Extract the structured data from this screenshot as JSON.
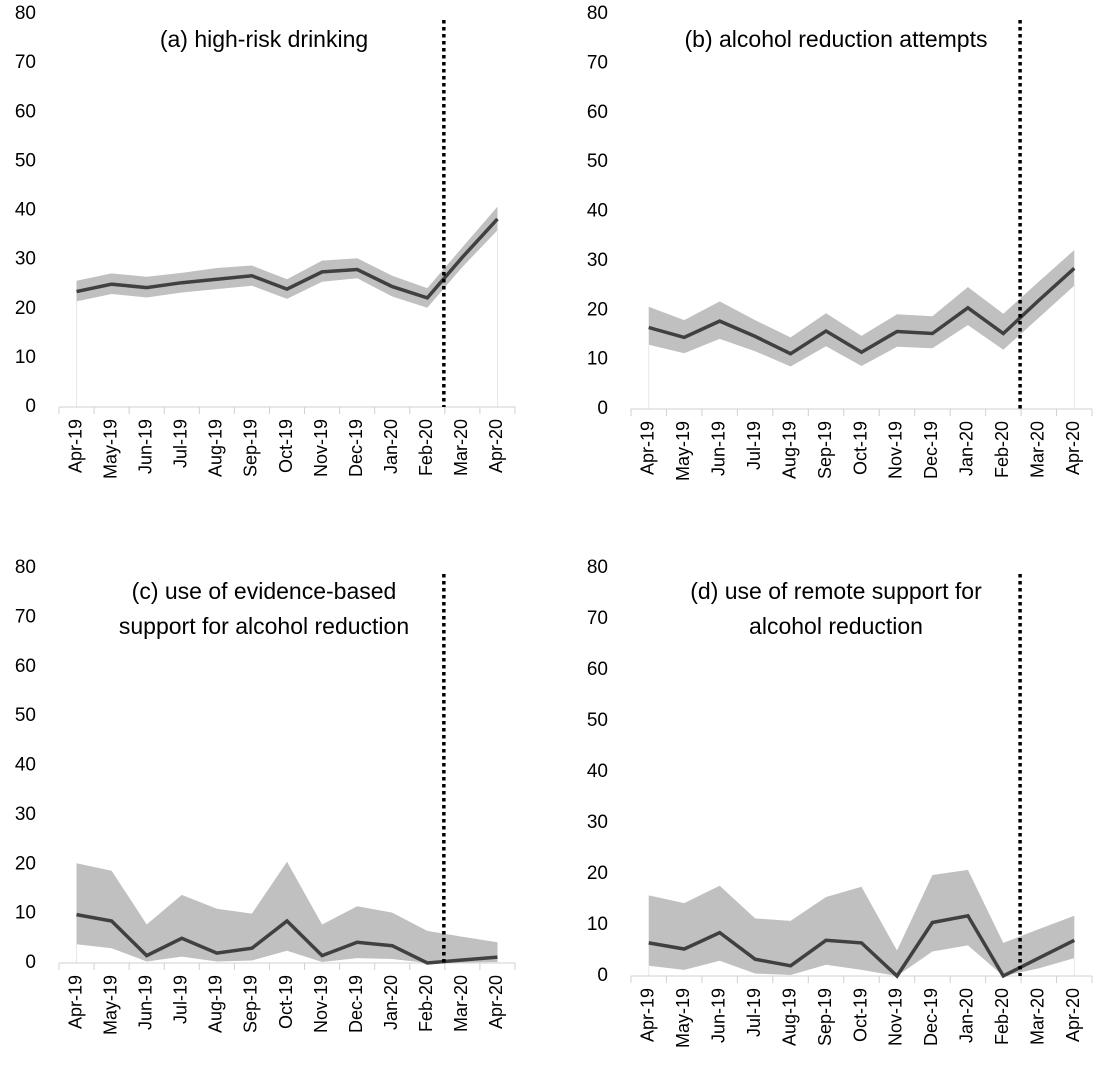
{
  "chart_data": [
    {
      "type": "line",
      "title_lines": [
        "(a) high-risk drinking"
      ],
      "categories": [
        "Apr-19",
        "May-19",
        "Jun-19",
        "Jul-19",
        "Aug-19",
        "Sep-19",
        "Oct-19",
        "Nov-19",
        "Dec-19",
        "Jan-20",
        "Feb-20",
        "Mar-20",
        "Apr-20"
      ],
      "yticks": [
        "0",
        "10",
        "20",
        "30",
        "40",
        "50",
        "60",
        "70",
        "80"
      ],
      "ylim": [
        0,
        80
      ],
      "series": [
        {
          "values": [
            23.5,
            25.0,
            24.3,
            25.3,
            26.0,
            26.7,
            24.0,
            27.5,
            28.0,
            24.5,
            22.2,
            30.5,
            38.3
          ],
          "lower": [
            21.5,
            23.0,
            22.3,
            23.3,
            24.0,
            24.7,
            22.0,
            25.5,
            26.2,
            22.5,
            20.2,
            28.5,
            36.0
          ],
          "upper": [
            25.7,
            27.2,
            26.5,
            27.3,
            28.3,
            28.8,
            26.0,
            29.8,
            30.3,
            26.7,
            24.2,
            32.5,
            40.8
          ]
        }
      ],
      "marker": {
        "style": "vertical-dotted",
        "between": [
          "Feb-20",
          "Mar-20"
        ]
      },
      "colors": {
        "line": "#404040",
        "band": "#c0c0c0",
        "marker": "#000000"
      }
    },
    {
      "type": "line",
      "title_lines": [
        "(b) alcohol reduction attempts"
      ],
      "categories": [
        "Apr-19",
        "May-19",
        "Jun-19",
        "Jul-19",
        "Aug-19",
        "Sep-19",
        "Oct-19",
        "Nov-19",
        "Dec-19",
        "Jan-20",
        "Feb-20",
        "Mar-20",
        "Apr-20"
      ],
      "yticks": [
        "0",
        "10",
        "20",
        "30",
        "40",
        "50",
        "60",
        "70",
        "80"
      ],
      "ylim": [
        0,
        80
      ],
      "series": [
        {
          "values": [
            16.5,
            14.5,
            17.8,
            14.7,
            11.2,
            15.8,
            11.5,
            15.7,
            15.3,
            20.5,
            15.3,
            22.0,
            28.5
          ],
          "lower": [
            13.0,
            11.3,
            14.2,
            11.7,
            8.6,
            12.7,
            8.7,
            12.6,
            12.3,
            17.0,
            12.0,
            18.5,
            25.0
          ],
          "upper": [
            20.7,
            18.0,
            21.8,
            18.0,
            14.5,
            19.4,
            14.8,
            19.2,
            18.8,
            24.7,
            19.3,
            25.8,
            32.2
          ]
        }
      ],
      "marker": {
        "style": "vertical-dotted",
        "between": [
          "Feb-20",
          "Mar-20"
        ]
      },
      "colors": {
        "line": "#404040",
        "band": "#c0c0c0",
        "marker": "#000000"
      }
    },
    {
      "type": "line",
      "title_lines": [
        "(c) use of evidence-based",
        "support for alcohol reduction"
      ],
      "categories": [
        "Apr-19",
        "May-19",
        "Jun-19",
        "Jul-19",
        "Aug-19",
        "Sep-19",
        "Oct-19",
        "Nov-19",
        "Dec-19",
        "Jan-20",
        "Feb-20",
        "Mar-20",
        "Apr-20"
      ],
      "yticks": [
        "0",
        "10",
        "20",
        "30",
        "40",
        "50",
        "60",
        "70",
        "80"
      ],
      "ylim": [
        0,
        80
      ],
      "series": [
        {
          "values": [
            9.8,
            8.5,
            1.5,
            5.0,
            2.0,
            3.0,
            8.5,
            1.5,
            4.2,
            3.5,
            0.0,
            0.6,
            1.2
          ],
          "lower": [
            3.8,
            3.0,
            0.3,
            1.3,
            0.3,
            0.5,
            2.5,
            0.2,
            1.0,
            0.8,
            0.0,
            0.1,
            0.2
          ],
          "upper": [
            20.2,
            18.7,
            7.8,
            13.8,
            11.0,
            10.0,
            20.5,
            7.8,
            11.5,
            10.2,
            6.5,
            5.3,
            4.2
          ]
        }
      ],
      "marker": {
        "style": "vertical-dotted",
        "between": [
          "Feb-20",
          "Mar-20"
        ]
      },
      "colors": {
        "line": "#404040",
        "band": "#c0c0c0",
        "marker": "#000000"
      }
    },
    {
      "type": "line",
      "title_lines": [
        "(d) use of remote support for",
        "alcohol reduction"
      ],
      "categories": [
        "Apr-19",
        "May-19",
        "Jun-19",
        "Jul-19",
        "Aug-19",
        "Sep-19",
        "Oct-19",
        "Nov-19",
        "Dec-19",
        "Jan-20",
        "Feb-20",
        "Mar-20",
        "Apr-20"
      ],
      "yticks": [
        "0",
        "10",
        "20",
        "30",
        "40",
        "50",
        "60",
        "70",
        "80"
      ],
      "ylim": [
        0,
        80
      ],
      "series": [
        {
          "values": [
            6.5,
            5.3,
            8.5,
            3.3,
            2.0,
            7.0,
            6.5,
            0.0,
            10.5,
            11.8,
            0.0,
            3.5,
            7.0
          ],
          "lower": [
            2.0,
            1.2,
            3.0,
            0.5,
            0.2,
            2.2,
            1.2,
            0.0,
            4.8,
            6.0,
            0.0,
            1.5,
            3.5
          ],
          "upper": [
            15.8,
            14.3,
            17.7,
            11.3,
            10.8,
            15.5,
            17.5,
            5.0,
            19.8,
            20.8,
            6.5,
            9.2,
            11.8
          ]
        }
      ],
      "marker": {
        "style": "vertical-dotted",
        "between": [
          "Feb-20",
          "Mar-20"
        ]
      },
      "colors": {
        "line": "#404040",
        "band": "#c0c0c0",
        "marker": "#000000"
      }
    }
  ]
}
